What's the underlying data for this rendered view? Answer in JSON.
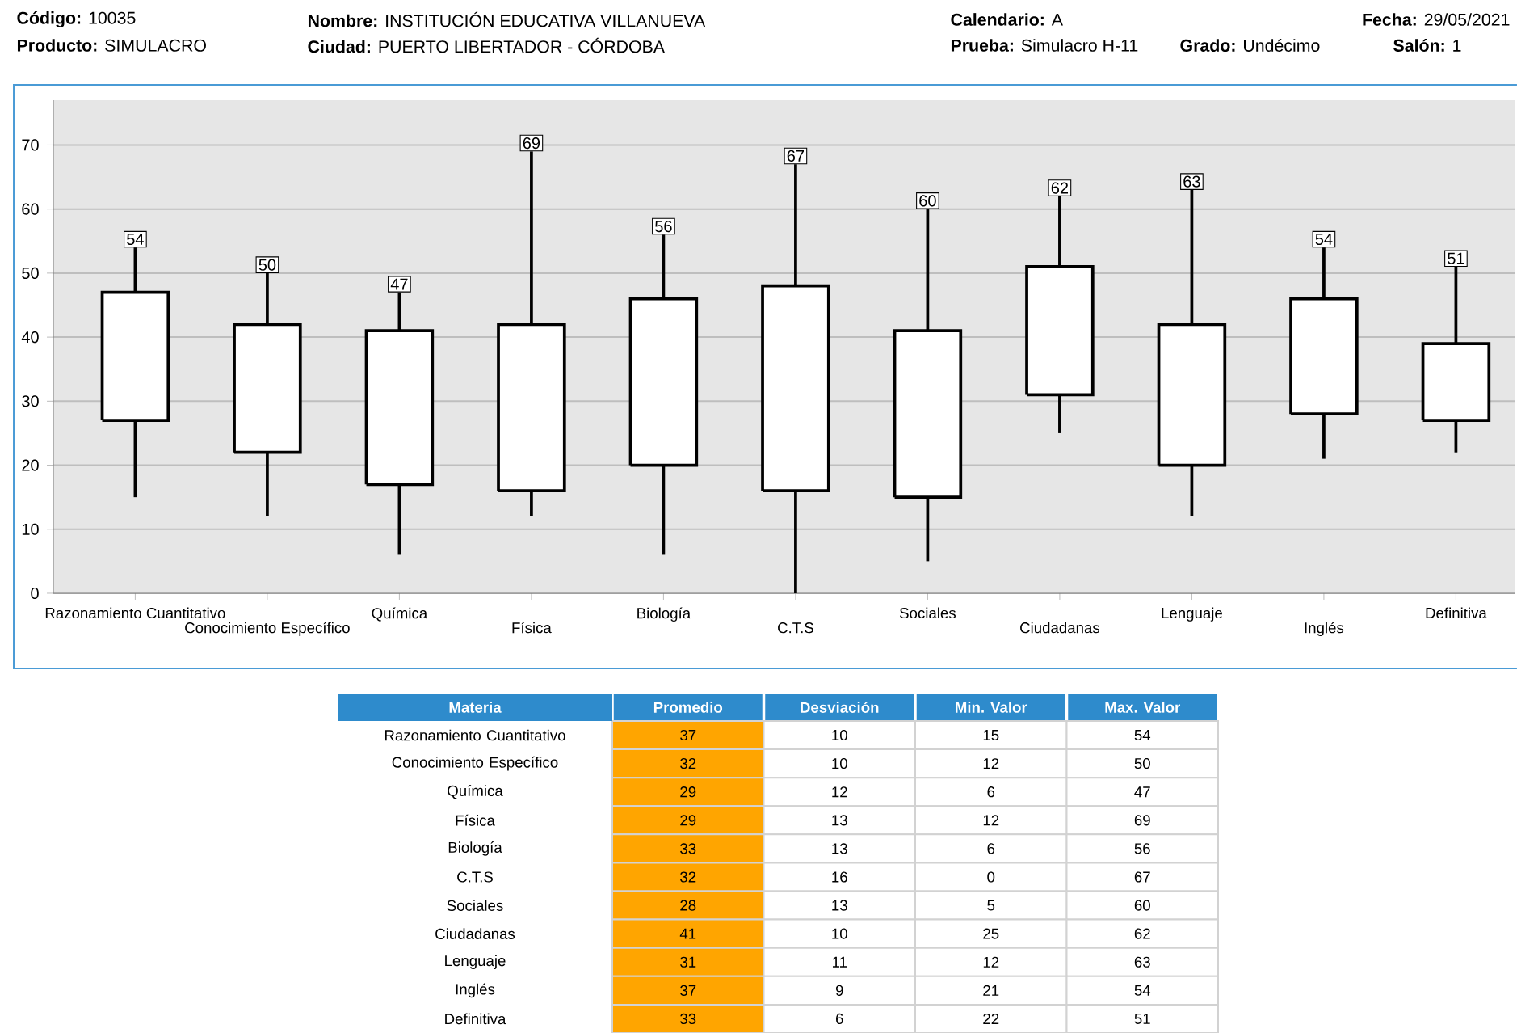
{
  "chart_data": [
    {
      "type": "box",
      "categories": [
        "Razonamiento Cuantitativo",
        "Conocimiento Específico",
        "Química",
        "Física",
        "Biología",
        "C.T.S",
        "Sociales",
        "Ciudadanas",
        "Lenguaje",
        "Inglés",
        "Definitiva"
      ],
      "boxes": [
        {
          "low": 15,
          "q1": 27,
          "q3": 47,
          "high": 54
        },
        {
          "low": 12,
          "q1": 22,
          "q3": 42,
          "high": 50
        },
        {
          "low": 6,
          "q1": 17,
          "q3": 41,
          "high": 47
        },
        {
          "low": 12,
          "q1": 16,
          "q3": 42,
          "high": 69
        },
        {
          "low": 6,
          "q1": 20,
          "q3": 46,
          "high": 56
        },
        {
          "low": 0,
          "q1": 16,
          "q3": 48,
          "high": 67
        },
        {
          "low": 5,
          "q1": 15,
          "q3": 41,
          "high": 60
        },
        {
          "low": 25,
          "q1": 31,
          "q3": 51,
          "high": 62
        },
        {
          "low": 12,
          "q1": 20,
          "q3": 42,
          "high": 63
        },
        {
          "low": 21,
          "q1": 28,
          "q3": 46,
          "high": 54
        },
        {
          "low": 22,
          "q1": 27,
          "q3": 39,
          "high": 51
        }
      ],
      "ylim": [
        0,
        77
      ],
      "yticks": [
        0,
        10,
        20,
        30,
        40,
        50,
        60,
        70
      ],
      "grid": "y",
      "value_labels": [
        "54",
        "50",
        "47",
        "69",
        "56",
        "67",
        "60",
        "62",
        "63",
        "54",
        "51"
      ],
      "annotations": [
        "**Código:** 10035",
        "**Producto:** SIMULACRO",
        "**Nombre:** INSTITUCIÓN EDUCATIVA VILLANUEVA",
        "**Ciudad:** PUERTO LIBERTADOR - CÓRDOBA",
        "**Calendario:** A",
        "**Prueba:** Simulacro H-11",
        "**Grado:** Undécimo",
        "**Fecha:** 29/05/2021",
        "**Salón:** 1"
      ]
    },
    {
      "type": "heatmap",
      "ylabel": "Materia",
      "categories": [
        "Promedio",
        "Desviación",
        "Min. Valor",
        "Max. Valor"
      ],
      "y_categories": [
        "Razonamiento Cuantitativo",
        "Conocimiento Específico",
        "Química",
        "Física",
        "Biología",
        "C.T.S",
        "Sociales",
        "Ciudadanas",
        "Lenguaje",
        "Inglés",
        "Definitiva"
      ],
      "colors": [
        "#ffa500",
        "#ffffff",
        "#ffffff",
        "#ffffff"
      ],
      "data_labels": true,
      "cells": [
        [
          37,
          10,
          15,
          54
        ],
        [
          32,
          10,
          12,
          50
        ],
        [
          29,
          12,
          6,
          47
        ],
        [
          29,
          13,
          12,
          69
        ],
        [
          33,
          13,
          6,
          56
        ],
        [
          32,
          16,
          0,
          67
        ],
        [
          28,
          13,
          5,
          60
        ],
        [
          41,
          10,
          25,
          62
        ],
        [
          31,
          11,
          12,
          63
        ],
        [
          37,
          9,
          21,
          54
        ],
        [
          33,
          6,
          22,
          51
        ]
      ]
    }
  ]
}
